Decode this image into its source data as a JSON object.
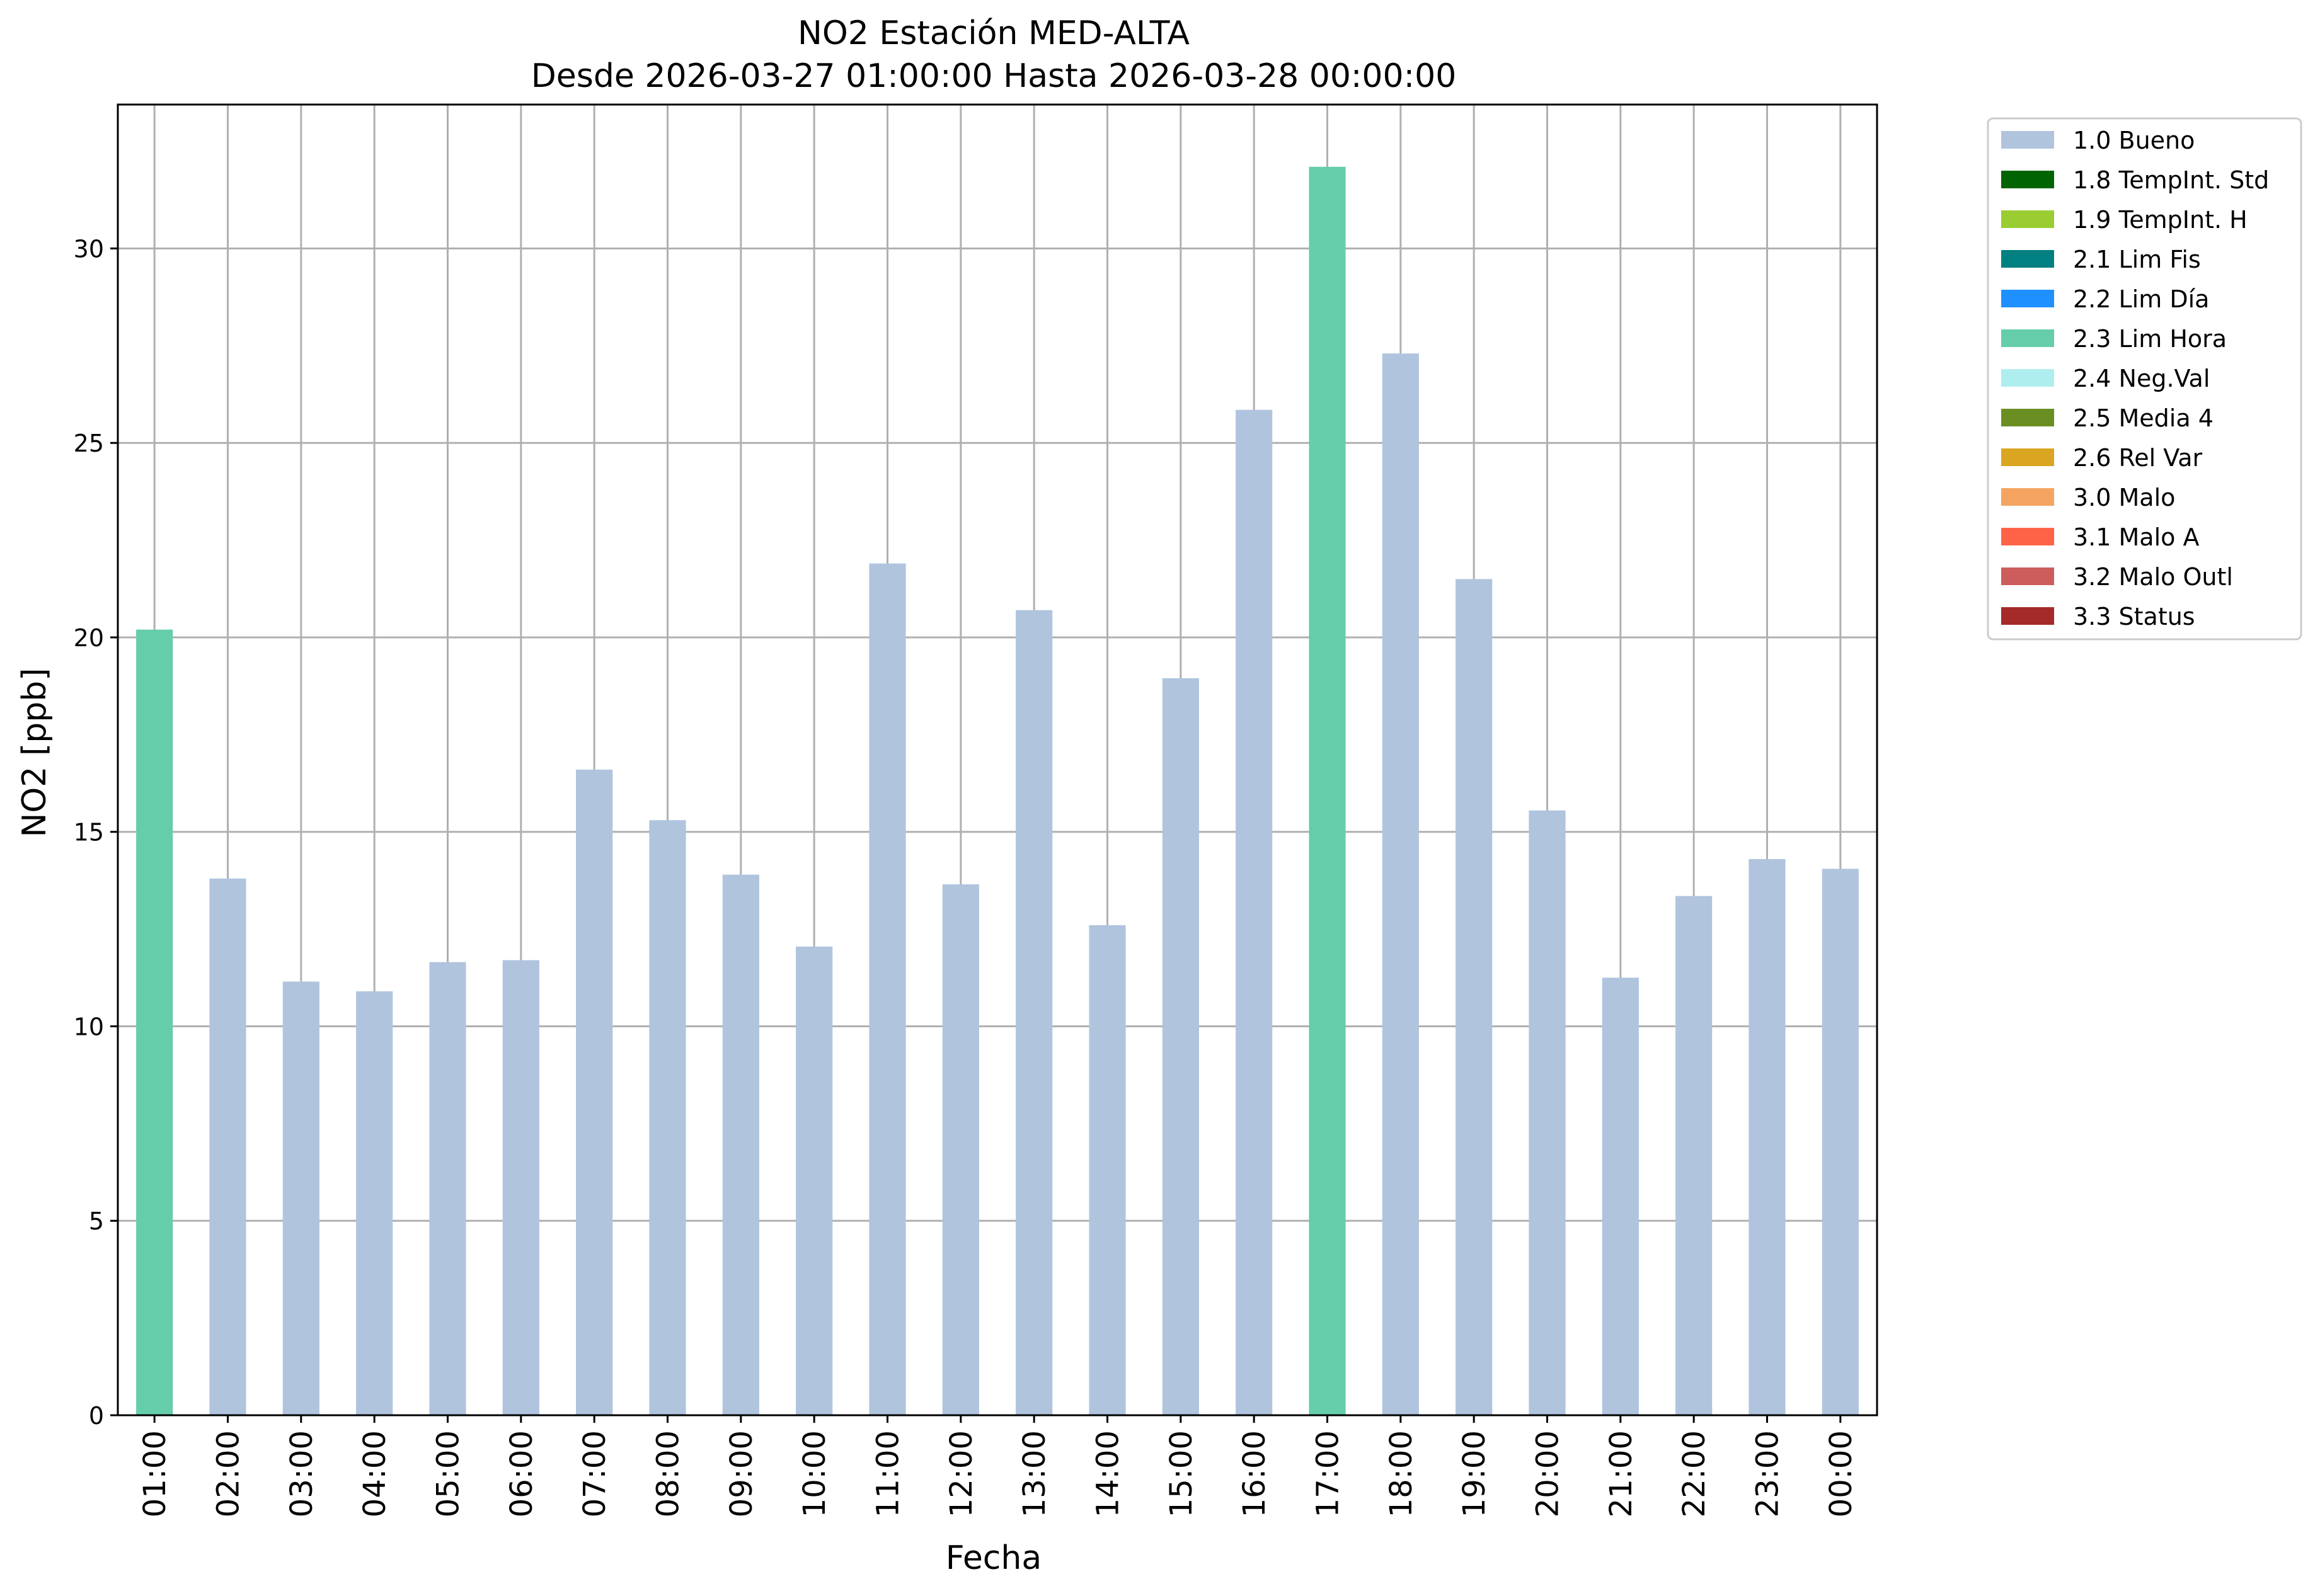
{
  "chart_data": {
    "type": "bar",
    "title": "NO2 Estación MED-ALTA",
    "subtitle": "Desde 2026-03-27 01:00:00 Hasta 2026-03-28 00:00:00",
    "xlabel": "Fecha",
    "ylabel": "NO2 [ppb]",
    "ylim": [
      0,
      33.7
    ],
    "yticks": [
      0,
      5,
      10,
      15,
      20,
      25,
      30
    ],
    "grid": true,
    "legend_position": "outside-top-right",
    "categories": [
      "01:00",
      "02:00",
      "03:00",
      "04:00",
      "05:00",
      "06:00",
      "07:00",
      "08:00",
      "09:00",
      "10:00",
      "11:00",
      "12:00",
      "13:00",
      "14:00",
      "15:00",
      "16:00",
      "17:00",
      "18:00",
      "19:00",
      "20:00",
      "21:00",
      "22:00",
      "23:00",
      "00:00"
    ],
    "values": [
      20.2,
      13.8,
      11.15,
      10.9,
      11.65,
      11.7,
      16.6,
      15.3,
      13.9,
      12.05,
      21.9,
      13.65,
      20.7,
      12.6,
      18.95,
      25.85,
      32.1,
      27.3,
      21.5,
      15.55,
      11.25,
      13.35,
      14.3,
      14.05
    ],
    "flags": [
      "2.3 Lim Hora",
      "1.0 Bueno",
      "1.0 Bueno",
      "1.0 Bueno",
      "1.0 Bueno",
      "1.0 Bueno",
      "1.0 Bueno",
      "1.0 Bueno",
      "1.0 Bueno",
      "1.0 Bueno",
      "1.0 Bueno",
      "1.0 Bueno",
      "1.0 Bueno",
      "1.0 Bueno",
      "1.0 Bueno",
      "1.0 Bueno",
      "2.3 Lim Hora",
      "1.0 Bueno",
      "1.0 Bueno",
      "1.0 Bueno",
      "1.0 Bueno",
      "1.0 Bueno",
      "1.0 Bueno",
      "1.0 Bueno"
    ],
    "legend": [
      {
        "label": "1.0 Bueno",
        "color": "#b0c4de"
      },
      {
        "label": "1.8 TempInt. Std",
        "color": "#006400"
      },
      {
        "label": "1.9 TempInt. H",
        "color": "#9acd32"
      },
      {
        "label": "2.1 Lim Fis",
        "color": "#008080"
      },
      {
        "label": "2.2 Lim Día",
        "color": "#1e90ff"
      },
      {
        "label": "2.3 Lim Hora",
        "color": "#66cdaa"
      },
      {
        "label": "2.4 Neg.Val",
        "color": "#afeeee"
      },
      {
        "label": "2.5 Media 4",
        "color": "#6b8e23"
      },
      {
        "label": "2.6 Rel Var",
        "color": "#daa520"
      },
      {
        "label": "3.0 Malo",
        "color": "#f4a460"
      },
      {
        "label": "3.1 Malo A",
        "color": "#ff6347"
      },
      {
        "label": "3.2 Malo Outl",
        "color": "#cd5c5c"
      },
      {
        "label": "3.3 Status",
        "color": "#a52a2a"
      }
    ],
    "grid_color": "#b0b0b0"
  }
}
